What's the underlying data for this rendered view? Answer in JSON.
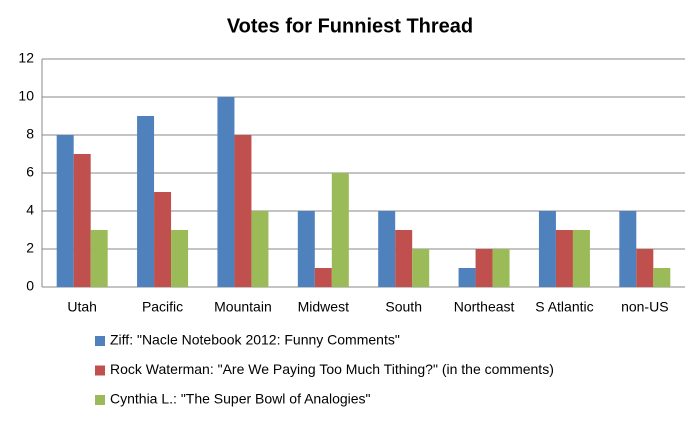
{
  "chart_data": {
    "type": "bar",
    "title": "Votes for Funniest Thread",
    "categories": [
      "Utah",
      "Pacific",
      "Mountain",
      "Midwest",
      "South",
      "Northeast",
      "S Atlantic",
      "non-US"
    ],
    "series": [
      {
        "name": "Ziff: \"Nacle Notebook 2012: Funny Comments\"",
        "color": "#4f81bd",
        "values": [
          8,
          9,
          10,
          4,
          4,
          1,
          4,
          4
        ]
      },
      {
        "name": "Rock Waterman: \"Are We Paying Too Much Tithing?\" (in the comments)",
        "color": "#c0504d",
        "values": [
          7,
          5,
          8,
          1,
          3,
          2,
          3,
          2
        ]
      },
      {
        "name": "Cynthia L.: \"The Super Bowl of Analogies\"",
        "color": "#9bbb59",
        "values": [
          3,
          3,
          4,
          6,
          2,
          2,
          3,
          1
        ]
      }
    ],
    "ylim": [
      0,
      12
    ],
    "yticks": [
      0,
      2,
      4,
      6,
      8,
      10,
      12
    ],
    "grid": true,
    "legend": "bottom"
  }
}
